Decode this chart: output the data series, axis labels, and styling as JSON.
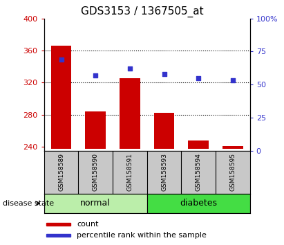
{
  "title": "GDS3153 / 1367505_at",
  "samples": [
    "GSM158589",
    "GSM158590",
    "GSM158591",
    "GSM158593",
    "GSM158594",
    "GSM158595"
  ],
  "bar_values": [
    366,
    284,
    325,
    282,
    248,
    241
  ],
  "scatter_values": [
    69,
    57,
    62,
    58,
    55,
    53
  ],
  "ylim_left": [
    235,
    400
  ],
  "ylim_right": [
    0,
    100
  ],
  "yticks_left": [
    240,
    280,
    320,
    360,
    400
  ],
  "yticks_right": [
    0,
    25,
    50,
    75,
    100
  ],
  "groups": [
    {
      "label": "normal",
      "indices": [
        0,
        1,
        2
      ],
      "color": "#BBEEAA"
    },
    {
      "label": "diabetes",
      "indices": [
        3,
        4,
        5
      ],
      "color": "#44DD44"
    }
  ],
  "bar_color": "#CC0000",
  "scatter_color": "#3333CC",
  "bar_bottom": 237,
  "plot_bg_color": "#FFFFFF",
  "tick_bg_color": "#C8C8C8",
  "group_label": "disease state",
  "legend_items": [
    {
      "label": "count",
      "color": "#CC0000"
    },
    {
      "label": "percentile rank within the sample",
      "color": "#3333CC"
    }
  ],
  "title_fontsize": 11,
  "tick_fontsize": 8,
  "sample_fontsize": 6.5,
  "group_fontsize": 9,
  "legend_fontsize": 8
}
